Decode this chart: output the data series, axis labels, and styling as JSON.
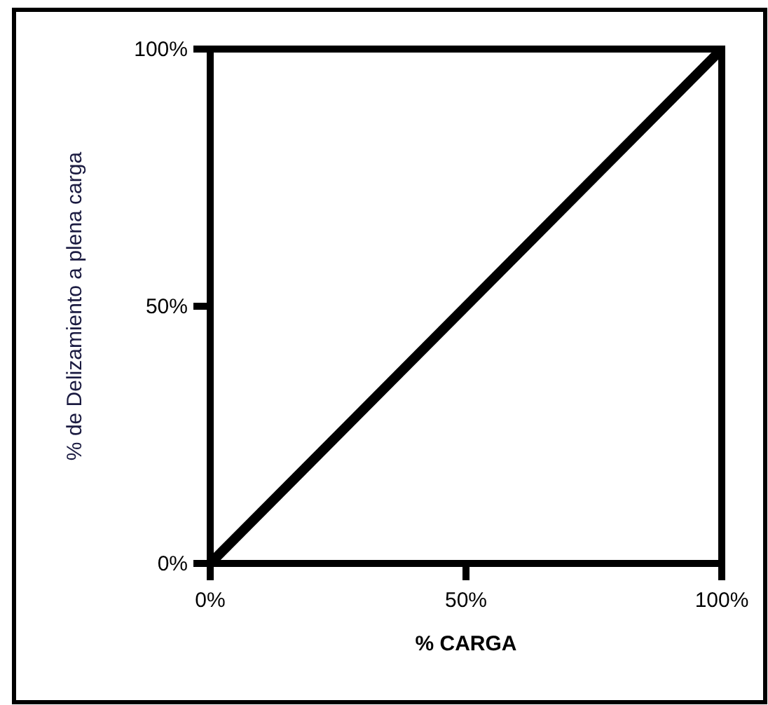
{
  "chart_data": {
    "type": "line",
    "xlabel": "% CARGA",
    "ylabel": "% de Delizamiento a plena carga",
    "x": [
      0,
      100
    ],
    "series": [
      {
        "color": "#000000",
        "values": [
          0,
          100
        ]
      }
    ],
    "xlim": [
      0,
      100
    ],
    "ylim": [
      0,
      100
    ],
    "xticks": [
      {
        "value": 0,
        "label": "0%"
      },
      {
        "value": 50,
        "label": "50%"
      },
      {
        "value": 100,
        "label": "100%"
      }
    ],
    "yticks": [
      {
        "value": 0,
        "label": "0%"
      },
      {
        "value": 50,
        "label": "50%"
      },
      {
        "value": 100,
        "label": "100%"
      }
    ],
    "grid": false,
    "marker": "none",
    "line_style": "solid"
  }
}
